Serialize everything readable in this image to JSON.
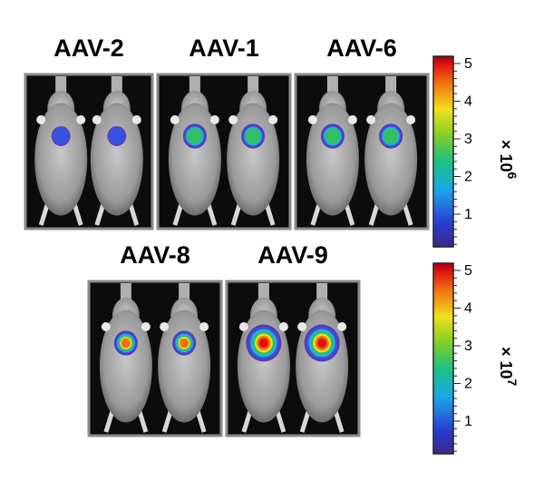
{
  "panels": [
    {
      "label": "AAV-2"
    },
    {
      "label": "AAV-1"
    },
    {
      "label": "AAV-6"
    },
    {
      "label": "AAV-8"
    },
    {
      "label": "AAV-9"
    }
  ],
  "colorbars": [
    {
      "ticks": [
        1,
        2,
        3,
        4,
        5
      ],
      "multiplier": "× 10",
      "exponent": "6"
    },
    {
      "ticks": [
        1,
        2,
        3,
        4,
        5
      ],
      "multiplier": "× 10",
      "exponent": "7"
    }
  ]
}
